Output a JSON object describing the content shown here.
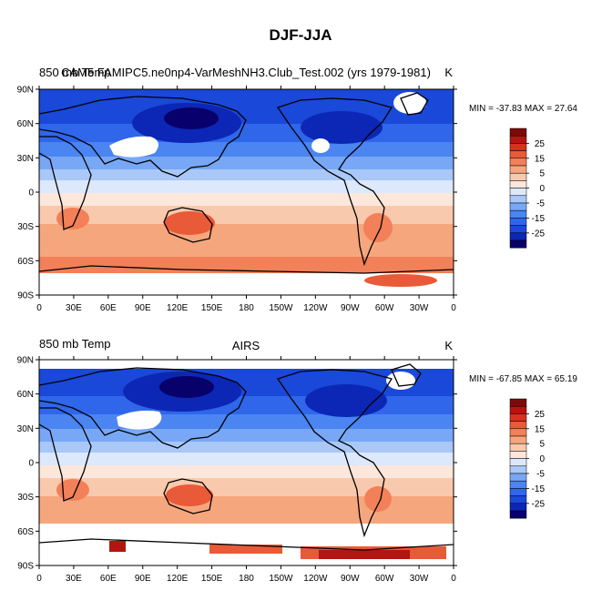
{
  "figure": {
    "title": "DJF-JJA"
  },
  "chart_data": [
    {
      "type": "heatmap",
      "left_title": "850 mb Temp",
      "center_title": "CAM5 FAMIPC5.ne0np4-VarMeshNH3.Club_Test.002 (yrs 1979-1981)",
      "units": "K",
      "stats": "MIN = -37.83 MAX =  27.64",
      "min": -37.83,
      "max": 27.64,
      "x_ticks": [
        "0",
        "30E",
        "60E",
        "90E",
        "120E",
        "150E",
        "180",
        "150W",
        "120W",
        "90W",
        "60W",
        "30W",
        "0"
      ],
      "y_ticks": [
        "90N",
        "60N",
        "30N",
        "0",
        "30S",
        "60S",
        "90S"
      ],
      "xlim": [
        0,
        360
      ],
      "ylim": [
        -90,
        90
      ]
    },
    {
      "type": "heatmap",
      "left_title": "850 mb Temp",
      "center_title": "AIRS",
      "units": "K",
      "stats": "MIN = -67.85 MAX =  65.19",
      "min": -67.85,
      "max": 65.19,
      "x_ticks": [
        "0",
        "30E",
        "60E",
        "90E",
        "120E",
        "150E",
        "180",
        "150W",
        "120W",
        "90W",
        "60W",
        "30W",
        "0"
      ],
      "y_ticks": [
        "90N",
        "60N",
        "30N",
        "0",
        "30S",
        "60S",
        "90S"
      ],
      "xlim": [
        0,
        360
      ],
      "ylim": [
        -90,
        90
      ]
    }
  ],
  "colorbar": {
    "levels": [
      -30,
      -25,
      -20,
      -15,
      -10,
      -5,
      -2.5,
      0,
      2.5,
      5,
      10,
      15,
      20,
      25,
      30
    ],
    "labels": [
      "25",
      "15",
      "5",
      "0",
      "-5",
      "-15",
      "-25"
    ],
    "colors": [
      "#08006b",
      "#0c27b5",
      "#1a48d8",
      "#2f66ea",
      "#4a85f2",
      "#78a7f5",
      "#a9c8f8",
      "#dce8fb",
      "#fde7db",
      "#f9c9ad",
      "#f6a67d",
      "#f28058",
      "#e95a38",
      "#d93120",
      "#b51510",
      "#7d0a0a"
    ]
  }
}
